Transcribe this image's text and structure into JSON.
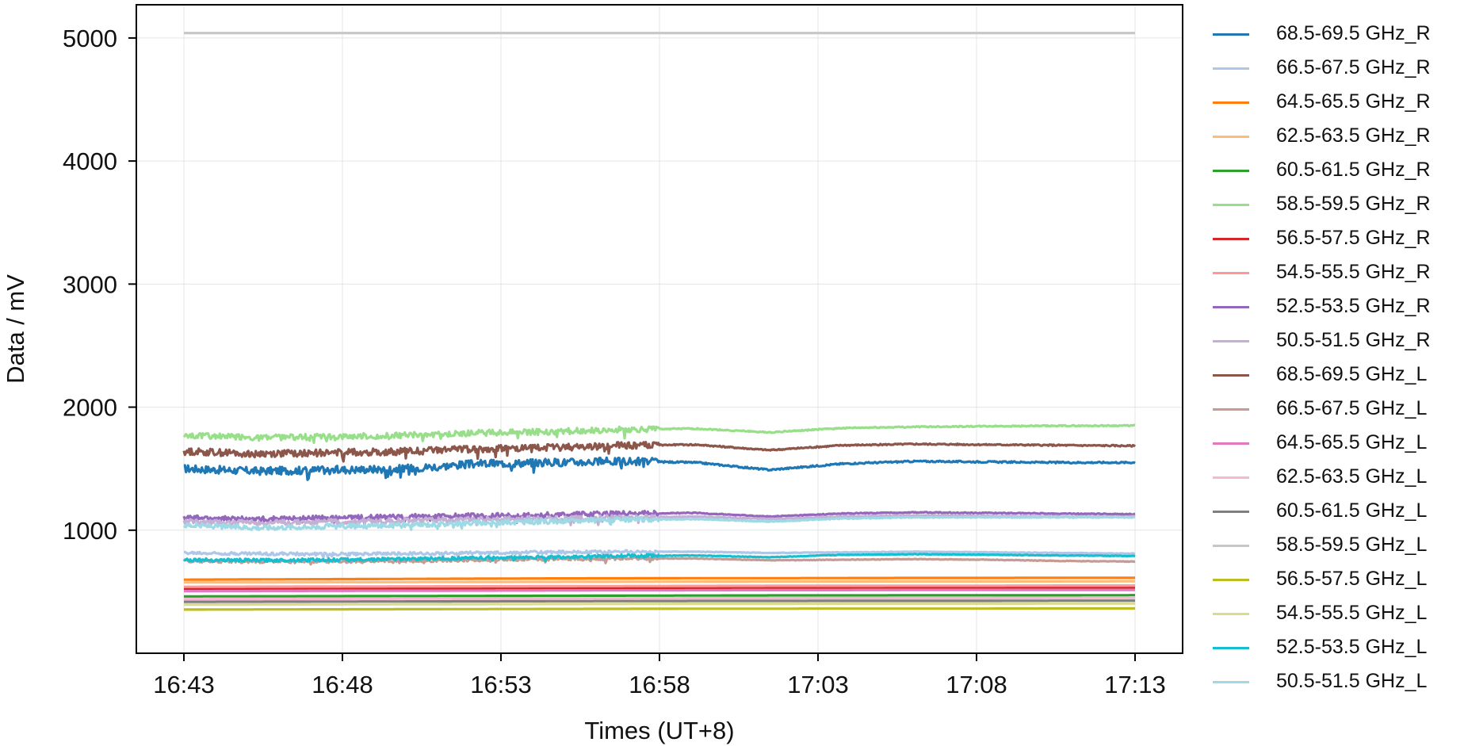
{
  "chart_data": {
    "type": "line",
    "xlabel": "Times (UT+8)",
    "ylabel": "Data / mV",
    "x_ticks": [
      "16:43",
      "16:48",
      "16:53",
      "16:58",
      "17:03",
      "17:08",
      "17:13"
    ],
    "x_start": "16:43",
    "x_end": "17:13",
    "xlim": [
      "16:41:30",
      "17:14:30"
    ],
    "ylim": [
      0,
      5270
    ],
    "y_ticks": [
      1000,
      2000,
      3000,
      4000,
      5000
    ],
    "grid": true,
    "legend_position": "outside-right",
    "series": [
      {
        "name": "68.5-69.5 GHz_R",
        "color": "#1f77b4",
        "base": [
          1500,
          1480,
          1490,
          1500,
          1540,
          1550,
          1560,
          1550,
          1490,
          1540,
          1560,
          1555,
          1550,
          1550
        ],
        "noise": 40
      },
      {
        "name": "66.5-67.5 GHz_R",
        "color": "#aec7e8",
        "base": [
          815,
          810,
          805,
          810,
          815,
          820,
          825,
          825,
          815,
          820,
          825,
          820,
          815,
          810
        ],
        "noise": 15
      },
      {
        "name": "64.5-65.5 GHz_R",
        "color": "#ff7f0e",
        "base": [
          598,
          600,
          602,
          604,
          606,
          608,
          609,
          610,
          610,
          611,
          612,
          612,
          613,
          613
        ],
        "noise": 0
      },
      {
        "name": "62.5-63.5 GHz_R",
        "color": "#ffbb78",
        "base": [
          575,
          576,
          577,
          578,
          579,
          580,
          581,
          582,
          583,
          583,
          584,
          584,
          584,
          585
        ],
        "noise": 0
      },
      {
        "name": "60.5-61.5 GHz_R",
        "color": "#2ca02c",
        "base": [
          462,
          463,
          464,
          465,
          466,
          467,
          468,
          469,
          470,
          470,
          471,
          471,
          471,
          472
        ],
        "noise": 0
      },
      {
        "name": "58.5-59.5 GHz_R",
        "color": "#98df8a",
        "base": [
          1770,
          1750,
          1760,
          1770,
          1790,
          1800,
          1820,
          1825,
          1795,
          1830,
          1840,
          1845,
          1848,
          1850
        ],
        "noise": 30
      },
      {
        "name": "56.5-57.5 GHz_R",
        "color": "#d62728",
        "base": [
          525,
          526,
          527,
          528,
          529,
          530,
          531,
          532,
          533,
          533,
          534,
          534,
          535,
          535
        ],
        "noise": 0
      },
      {
        "name": "54.5-55.5 GHz_R",
        "color": "#ff9896",
        "base": [
          540,
          541,
          542,
          543,
          544,
          545,
          546,
          547,
          548,
          548,
          549,
          549,
          550,
          550
        ],
        "noise": 0
      },
      {
        "name": "52.5-53.5 GHz_R",
        "color": "#9467bd",
        "base": [
          1100,
          1090,
          1100,
          1110,
          1120,
          1125,
          1135,
          1140,
          1110,
          1135,
          1145,
          1140,
          1135,
          1130
        ],
        "noise": 25
      },
      {
        "name": "50.5-51.5 GHz_R",
        "color": "#c5b0d5",
        "base": [
          1070,
          1060,
          1070,
          1080,
          1090,
          1095,
          1105,
          1110,
          1090,
          1110,
          1120,
          1115,
          1110,
          1110
        ],
        "noise": 25
      },
      {
        "name": "68.5-69.5 GHz_L",
        "color": "#8c564b",
        "base": [
          1640,
          1620,
          1630,
          1640,
          1660,
          1670,
          1690,
          1695,
          1650,
          1690,
          1700,
          1695,
          1690,
          1685
        ],
        "noise": 35
      },
      {
        "name": "66.5-67.5 GHz_L",
        "color": "#c49c94",
        "base": [
          750,
          745,
          745,
          750,
          760,
          765,
          770,
          770,
          755,
          760,
          765,
          760,
          750,
          745
        ],
        "noise": 15
      },
      {
        "name": "64.5-65.5 GHz_L",
        "color": "#e377c2",
        "base": [
          505,
          506,
          507,
          508,
          509,
          510,
          511,
          512,
          513,
          513,
          514,
          514,
          515,
          515
        ],
        "noise": 0
      },
      {
        "name": "62.5-63.5 GHz_L",
        "color": "#f7b6d2",
        "base": [
          440,
          441,
          442,
          443,
          444,
          445,
          446,
          447,
          447,
          448,
          448,
          448,
          449,
          449
        ],
        "noise": 0
      },
      {
        "name": "60.5-61.5 GHz_L",
        "color": "#7f7f7f",
        "base": [
          418,
          419,
          420,
          421,
          422,
          423,
          424,
          425,
          425,
          426,
          426,
          426,
          427,
          427
        ],
        "noise": 0
      },
      {
        "name": "58.5-59.5 GHz_L",
        "color": "#c7c7c7",
        "base": [
          5040,
          5040,
          5040,
          5040,
          5040,
          5040,
          5040,
          5040,
          5040,
          5040,
          5040,
          5040,
          5040,
          5040
        ],
        "noise": 0
      },
      {
        "name": "56.5-57.5 GHz_L",
        "color": "#bcbd22",
        "base": [
          355,
          356,
          357,
          358,
          359,
          360,
          361,
          362,
          362,
          363,
          363,
          363,
          364,
          364
        ],
        "noise": 0
      },
      {
        "name": "54.5-55.5 GHz_L",
        "color": "#dbdb8d",
        "base": [
          395,
          396,
          397,
          398,
          399,
          400,
          401,
          402,
          402,
          403,
          403,
          403,
          404,
          404
        ],
        "noise": 0
      },
      {
        "name": "52.5-53.5 GHz_L",
        "color": "#17becf",
        "base": [
          760,
          755,
          760,
          765,
          775,
          780,
          790,
          795,
          780,
          800,
          805,
          800,
          795,
          790
        ],
        "noise": 15
      },
      {
        "name": "50.5-51.5 GHz_L",
        "color": "#9edae5",
        "base": [
          1040,
          1020,
          1030,
          1040,
          1060,
          1070,
          1085,
          1090,
          1070,
          1095,
          1105,
          1105,
          1105,
          1105
        ],
        "noise": 25
      }
    ]
  }
}
